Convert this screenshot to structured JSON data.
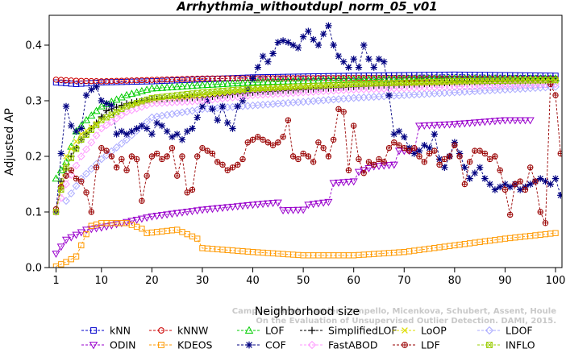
{
  "chart_data": {
    "type": "line",
    "title": "Arrhythmia_withoutdupl_norm_05_v01",
    "xlabel": "Neighborhood size",
    "ylabel": "Adjusted AP",
    "xlim": [
      0,
      101
    ],
    "ylim": [
      0.0,
      0.45
    ],
    "x_ticks": [
      1,
      10,
      20,
      30,
      40,
      50,
      60,
      70,
      80,
      90,
      100
    ],
    "y_ticks": [
      0.0,
      0.1,
      0.2,
      0.3,
      0.4
    ],
    "x_tick_labels": [
      "1",
      "10",
      "20",
      "30",
      "40",
      "50",
      "60",
      "70",
      "80",
      "90",
      "100"
    ],
    "y_tick_labels": [
      "0.0",
      "0.1",
      "0.2",
      "0.3",
      "0.4"
    ],
    "grid": false,
    "legend_position": "bottom",
    "watermark": "Campos, Zimek, Sander, Campello, Micenkova, Schubert, Assent, Houle\nOn the Evaluation of Unsupervised Outlier Detection. DAMI, 2015.",
    "series": [
      {
        "name": "kNN",
        "color": "#0000cc",
        "marker": "square",
        "x_start": 1,
        "anchors": [
          [
            1,
            0.333
          ],
          [
            5,
            0.33
          ],
          [
            10,
            0.333
          ],
          [
            20,
            0.335
          ],
          [
            40,
            0.342
          ],
          [
            60,
            0.345
          ],
          [
            80,
            0.347
          ],
          [
            100,
            0.345
          ]
        ]
      },
      {
        "name": "kNNW",
        "color": "#cc0000",
        "marker": "circle",
        "x_start": 1,
        "anchors": [
          [
            1,
            0.338
          ],
          [
            5,
            0.336
          ],
          [
            10,
            0.335
          ],
          [
            30,
            0.34
          ],
          [
            60,
            0.341
          ],
          [
            100,
            0.34
          ]
        ]
      },
      {
        "name": "LOF",
        "color": "#00cc00",
        "marker": "triangle-up",
        "x_start": 1,
        "anchors": [
          [
            1,
            0.16
          ],
          [
            3,
            0.19
          ],
          [
            5,
            0.245
          ],
          [
            7,
            0.265
          ],
          [
            10,
            0.29
          ],
          [
            15,
            0.31
          ],
          [
            20,
            0.322
          ],
          [
            30,
            0.328
          ],
          [
            40,
            0.333
          ],
          [
            60,
            0.338
          ],
          [
            80,
            0.34
          ],
          [
            100,
            0.34
          ]
        ]
      },
      {
        "name": "SimplifiedLOF",
        "color": "#000000",
        "marker": "plus",
        "x_start": 1,
        "anchors": [
          [
            1,
            0.1
          ],
          [
            2,
            0.155
          ],
          [
            4,
            0.2
          ],
          [
            6,
            0.23
          ],
          [
            9,
            0.26
          ],
          [
            11,
            0.282
          ],
          [
            15,
            0.295
          ],
          [
            20,
            0.303
          ],
          [
            30,
            0.306
          ],
          [
            40,
            0.315
          ],
          [
            50,
            0.32
          ],
          [
            60,
            0.325
          ],
          [
            80,
            0.333
          ],
          [
            100,
            0.337
          ]
        ]
      },
      {
        "name": "LoOP",
        "color": "#dddd00",
        "marker": "x",
        "x_start": 1,
        "anchors": [
          [
            1,
            0.1
          ],
          [
            3,
            0.2
          ],
          [
            6,
            0.24
          ],
          [
            10,
            0.265
          ],
          [
            15,
            0.29
          ],
          [
            20,
            0.3
          ],
          [
            30,
            0.31
          ],
          [
            40,
            0.32
          ],
          [
            60,
            0.33
          ],
          [
            100,
            0.335
          ]
        ]
      },
      {
        "name": "LDOF",
        "color": "#aaaaff",
        "marker": "diamond",
        "x_start": 3,
        "anchors": [
          [
            3,
            0.12
          ],
          [
            6,
            0.16
          ],
          [
            10,
            0.195
          ],
          [
            15,
            0.23
          ],
          [
            20,
            0.27
          ],
          [
            30,
            0.285
          ],
          [
            50,
            0.298
          ],
          [
            60,
            0.305
          ],
          [
            80,
            0.315
          ],
          [
            100,
            0.325
          ]
        ]
      },
      {
        "name": "ODIN",
        "color": "#9900cc",
        "marker": "triangle-down",
        "x_start": 1,
        "anchors": [
          [
            1,
            0.025
          ],
          [
            3,
            0.05
          ],
          [
            7,
            0.068
          ],
          [
            10,
            0.072
          ],
          [
            15,
            0.082
          ],
          [
            20,
            0.092
          ],
          [
            30,
            0.104
          ],
          [
            40,
            0.113
          ],
          [
            45,
            0.117
          ],
          [
            46,
            0.103
          ],
          [
            50,
            0.104
          ],
          [
            51,
            0.113
          ],
          [
            55,
            0.118
          ],
          [
            56,
            0.152
          ],
          [
            60,
            0.155
          ],
          [
            61,
            0.172
          ],
          [
            64,
            0.182
          ],
          [
            68,
            0.185
          ],
          [
            69,
            0.21
          ],
          [
            72,
            0.21
          ],
          [
            73,
            0.255
          ],
          [
            80,
            0.258
          ],
          [
            90,
            0.265
          ],
          [
            95,
            0.265
          ]
        ]
      },
      {
        "name": "KDEOS",
        "color": "#ff9900",
        "marker": "square",
        "x_start": 1,
        "anchors": [
          [
            1,
            0.002
          ],
          [
            3,
            0.01
          ],
          [
            5,
            0.02
          ],
          [
            6,
            0.04
          ],
          [
            7,
            0.06
          ],
          [
            8,
            0.075
          ],
          [
            10,
            0.08
          ],
          [
            15,
            0.08
          ],
          [
            18,
            0.07
          ],
          [
            19,
            0.062
          ],
          [
            25,
            0.068
          ],
          [
            29,
            0.052
          ],
          [
            30,
            0.035
          ],
          [
            40,
            0.028
          ],
          [
            50,
            0.022
          ],
          [
            60,
            0.022
          ],
          [
            70,
            0.028
          ],
          [
            80,
            0.04
          ],
          [
            90,
            0.052
          ],
          [
            100,
            0.062
          ]
        ]
      },
      {
        "name": "COF",
        "color": "#000080",
        "marker": "star",
        "x_start": 1,
        "values": [
          0.1,
          0.205,
          0.29,
          0.255,
          0.245,
          0.25,
          0.31,
          0.32,
          0.325,
          0.3,
          0.295,
          0.292,
          0.24,
          0.245,
          0.24,
          0.245,
          0.25,
          0.255,
          0.25,
          0.24,
          0.26,
          0.255,
          0.245,
          0.235,
          0.24,
          0.23,
          0.245,
          0.25,
          0.27,
          0.29,
          0.3,
          0.285,
          0.265,
          0.29,
          0.26,
          0.25,
          0.29,
          0.3,
          0.32,
          0.34,
          0.36,
          0.38,
          0.37,
          0.385,
          0.405,
          0.408,
          0.405,
          0.4,
          0.395,
          0.415,
          0.425,
          0.41,
          0.4,
          0.42,
          0.435,
          0.4,
          0.38,
          0.37,
          0.36,
          0.375,
          0.36,
          0.4,
          0.375,
          0.36,
          0.375,
          0.37,
          0.31,
          0.24,
          0.245,
          0.235,
          0.215,
          0.205,
          0.21,
          0.22,
          0.215,
          0.24,
          0.195,
          0.18,
          0.2,
          0.225,
          0.205,
          0.18,
          0.16,
          0.17,
          0.18,
          0.16,
          0.15,
          0.14,
          0.145,
          0.15,
          0.145,
          0.15,
          0.14,
          0.145,
          0.15,
          0.155,
          0.16,
          0.155,
          0.15,
          0.16,
          0.13
        ]
      },
      {
        "name": "FastABOD",
        "color": "#ff99ff",
        "marker": "diamond",
        "x_start": 1,
        "anchors": [
          [
            1,
            0.1
          ],
          [
            3,
            0.15
          ],
          [
            6,
            0.2
          ],
          [
            10,
            0.25
          ],
          [
            15,
            0.28
          ],
          [
            20,
            0.295
          ],
          [
            30,
            0.3
          ],
          [
            40,
            0.31
          ],
          [
            60,
            0.32
          ],
          [
            100,
            0.33
          ]
        ]
      },
      {
        "name": "LDF",
        "color": "#990000",
        "marker": "circle-plus",
        "x_start": 1,
        "values": [
          0.105,
          0.145,
          0.165,
          0.175,
          0.16,
          0.155,
          0.135,
          0.1,
          0.18,
          0.215,
          0.21,
          0.2,
          0.18,
          0.195,
          0.175,
          0.2,
          0.195,
          0.12,
          0.165,
          0.2,
          0.205,
          0.195,
          0.2,
          0.215,
          0.165,
          0.2,
          0.135,
          0.14,
          0.2,
          0.215,
          0.21,
          0.205,
          0.19,
          0.185,
          0.175,
          0.18,
          0.185,
          0.195,
          0.225,
          0.23,
          0.235,
          0.23,
          0.225,
          0.22,
          0.225,
          0.235,
          0.265,
          0.2,
          0.195,
          0.205,
          0.2,
          0.19,
          0.225,
          0.215,
          0.2,
          0.23,
          0.285,
          0.28,
          0.175,
          0.255,
          0.195,
          0.17,
          0.19,
          0.185,
          0.195,
          0.19,
          0.215,
          0.225,
          0.22,
          0.215,
          0.21,
          0.215,
          0.2,
          0.19,
          0.205,
          0.21,
          0.185,
          0.195,
          0.2,
          0.22,
          0.2,
          0.15,
          0.19,
          0.21,
          0.21,
          0.205,
          0.195,
          0.2,
          0.175,
          0.14,
          0.095,
          0.15,
          0.155,
          0.14,
          0.18,
          0.155,
          0.1,
          0.08,
          0.33,
          0.31,
          0.205
        ]
      },
      {
        "name": "INFLO",
        "color": "#99cc00",
        "marker": "square-x",
        "x_start": 1,
        "anchors": [
          [
            1,
            0.1
          ],
          [
            3,
            0.18
          ],
          [
            6,
            0.23
          ],
          [
            10,
            0.265
          ],
          [
            15,
            0.29
          ],
          [
            20,
            0.305
          ],
          [
            30,
            0.315
          ],
          [
            40,
            0.322
          ],
          [
            60,
            0.33
          ],
          [
            80,
            0.335
          ],
          [
            100,
            0.337
          ]
        ]
      }
    ]
  }
}
